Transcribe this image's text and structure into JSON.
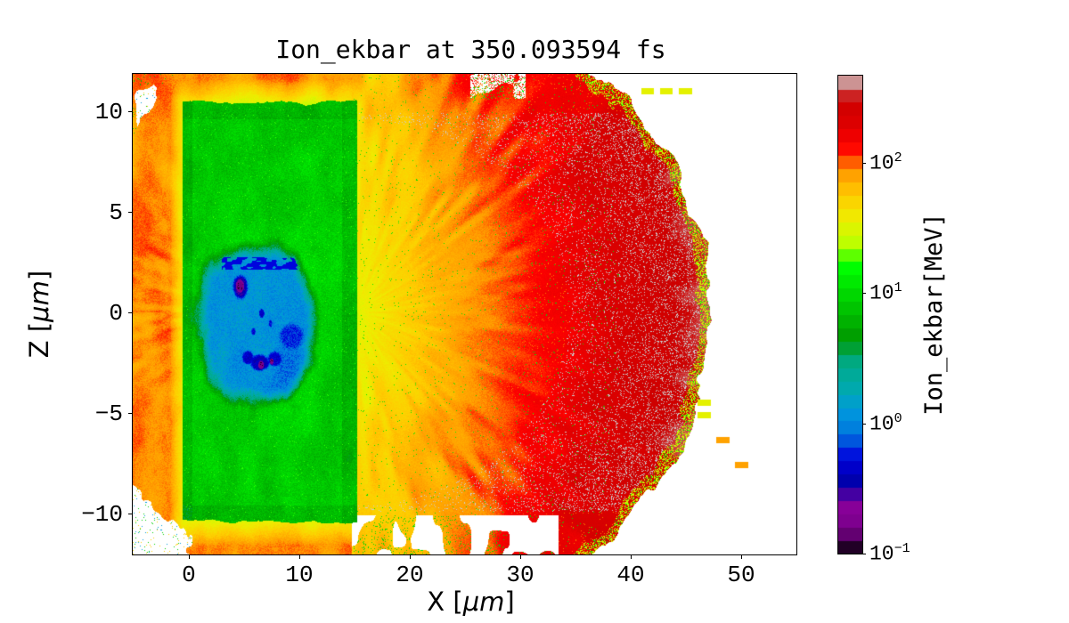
{
  "chart_data": {
    "type": "heatmap",
    "title": "Ion_ekbar at 350.093594 fs",
    "quantity": "Ion_ekbar",
    "time_fs": 350.093594,
    "xlabel": {
      "pre": "X [",
      "unit": "μm",
      "post": "]"
    },
    "ylabel": {
      "pre": "Z [",
      "unit": "μm",
      "post": "]"
    },
    "x_range": [
      -5.08,
      55.0
    ],
    "z_range": [
      -12.03,
      11.85
    ],
    "x_ticks": [
      0,
      10,
      20,
      30,
      40,
      50
    ],
    "z_ticks": [
      10,
      5,
      0,
      -5,
      -10
    ],
    "grid": false,
    "colorbar": {
      "label": "Ion_ekbar[MeV]",
      "scale": "log",
      "vmin_MeV": 0.1,
      "vmax_MeV": 467,
      "levels": 36,
      "colormap": "nipy_spectral",
      "ticks": [
        {
          "label": "10",
          "exp": "2",
          "value": 100
        },
        {
          "label": "10",
          "exp": "1",
          "value": 10
        },
        {
          "label": "10",
          "exp": "0",
          "value": 1
        },
        {
          "label": "10",
          "exp": "−1",
          "value": 0.1
        }
      ]
    },
    "key_colors": {
      "ambient_orange": "#ff9e00",
      "sheath_yellow": "#eeee00",
      "target_green": "#00cc00",
      "core_cyan": "#0095dd",
      "cold_navy": "#0000aa",
      "cold_purple": "#880099",
      "plasma_red": "#e00000",
      "rim_dark_red": "#b40000",
      "hot_gray": "#cccccc",
      "background": "#ffffff"
    },
    "features": [
      {
        "name": "ambient-plume",
        "shape": "background",
        "x": [
          -5.08,
          15.6
        ],
        "z": [
          -12.0,
          11.85
        ],
        "value_MeV": [
          35,
          100
        ],
        "desc": "orange halo around target, yellow sheath near slab edges, ragged white eroded corners at left with green/cyan specks"
      },
      {
        "name": "target-slab",
        "shape": "rect",
        "x": [
          -0.55,
          15.25
        ],
        "z": [
          -10.42,
          10.42
        ],
        "value_MeV": [
          5,
          16
        ],
        "desc": "green target slab, darker at edges, mottled"
      },
      {
        "name": "cold-core",
        "shape": "ellipse",
        "center": [
          6.2,
          -0.5
        ],
        "rx": 5.05,
        "rz": 3.75,
        "value_MeV": [
          0.6,
          1.9
        ],
        "desc": "cyan-blue cold core inside slab"
      },
      {
        "name": "cold-spots",
        "shape": "blobs",
        "blobs": [
          [
            4.65,
            1.25,
            0.85,
            0.75,
            0.34
          ],
          [
            5.35,
            -2.25,
            0.6,
            0.4,
            0.45
          ],
          [
            6.45,
            -2.5,
            1.05,
            0.5,
            0.4
          ],
          [
            7.75,
            -2.3,
            0.8,
            0.45,
            0.48
          ],
          [
            9.3,
            -1.2,
            1.35,
            0.8,
            0.62
          ],
          [
            6.6,
            -0.05,
            0.3,
            0.3,
            0.45
          ],
          [
            5.85,
            -0.95,
            0.24,
            0.24,
            0.5
          ],
          [
            7.4,
            -0.55,
            0.22,
            0.22,
            0.55
          ]
        ],
        "purple_spots": [
          [
            4.62,
            1.3,
            0.45,
            0.4,
            0.15
          ],
          [
            6.55,
            -2.62,
            0.3,
            0.25,
            0.16
          ],
          [
            7.5,
            -2.45,
            0.22,
            0.2,
            0.17
          ]
        ],
        "value_MeV": [
          0.1,
          0.6
        ],
        "desc": "navy/blue cold blobs with dark violet centers"
      },
      {
        "name": "expanding-plasma",
        "shape": "half-ellipse",
        "center": [
          15,
          0
        ],
        "rx": 32.3,
        "rz": 16.0,
        "value_MeV": [
          30,
          370
        ],
        "desc": "yellow to orange to red expanding plasma with radial filaments, eroded bottom edge"
      },
      {
        "name": "hot-speckles",
        "shape": "speckle",
        "x": [
          28,
          46.5
        ],
        "z": [
          -10,
          10
        ],
        "value_MeV": [
          370,
          467
        ],
        "desc": "gray saturated speckles near the red rim"
      },
      {
        "name": "ejecta-dashes",
        "shape": "dashes",
        "x": [
          46,
          54.5
        ],
        "z": [
          -11,
          11
        ],
        "value_MeV": [
          10,
          100
        ],
        "desc": "sparse yellow/orange/green ejecta dashes outside the rim"
      }
    ]
  }
}
